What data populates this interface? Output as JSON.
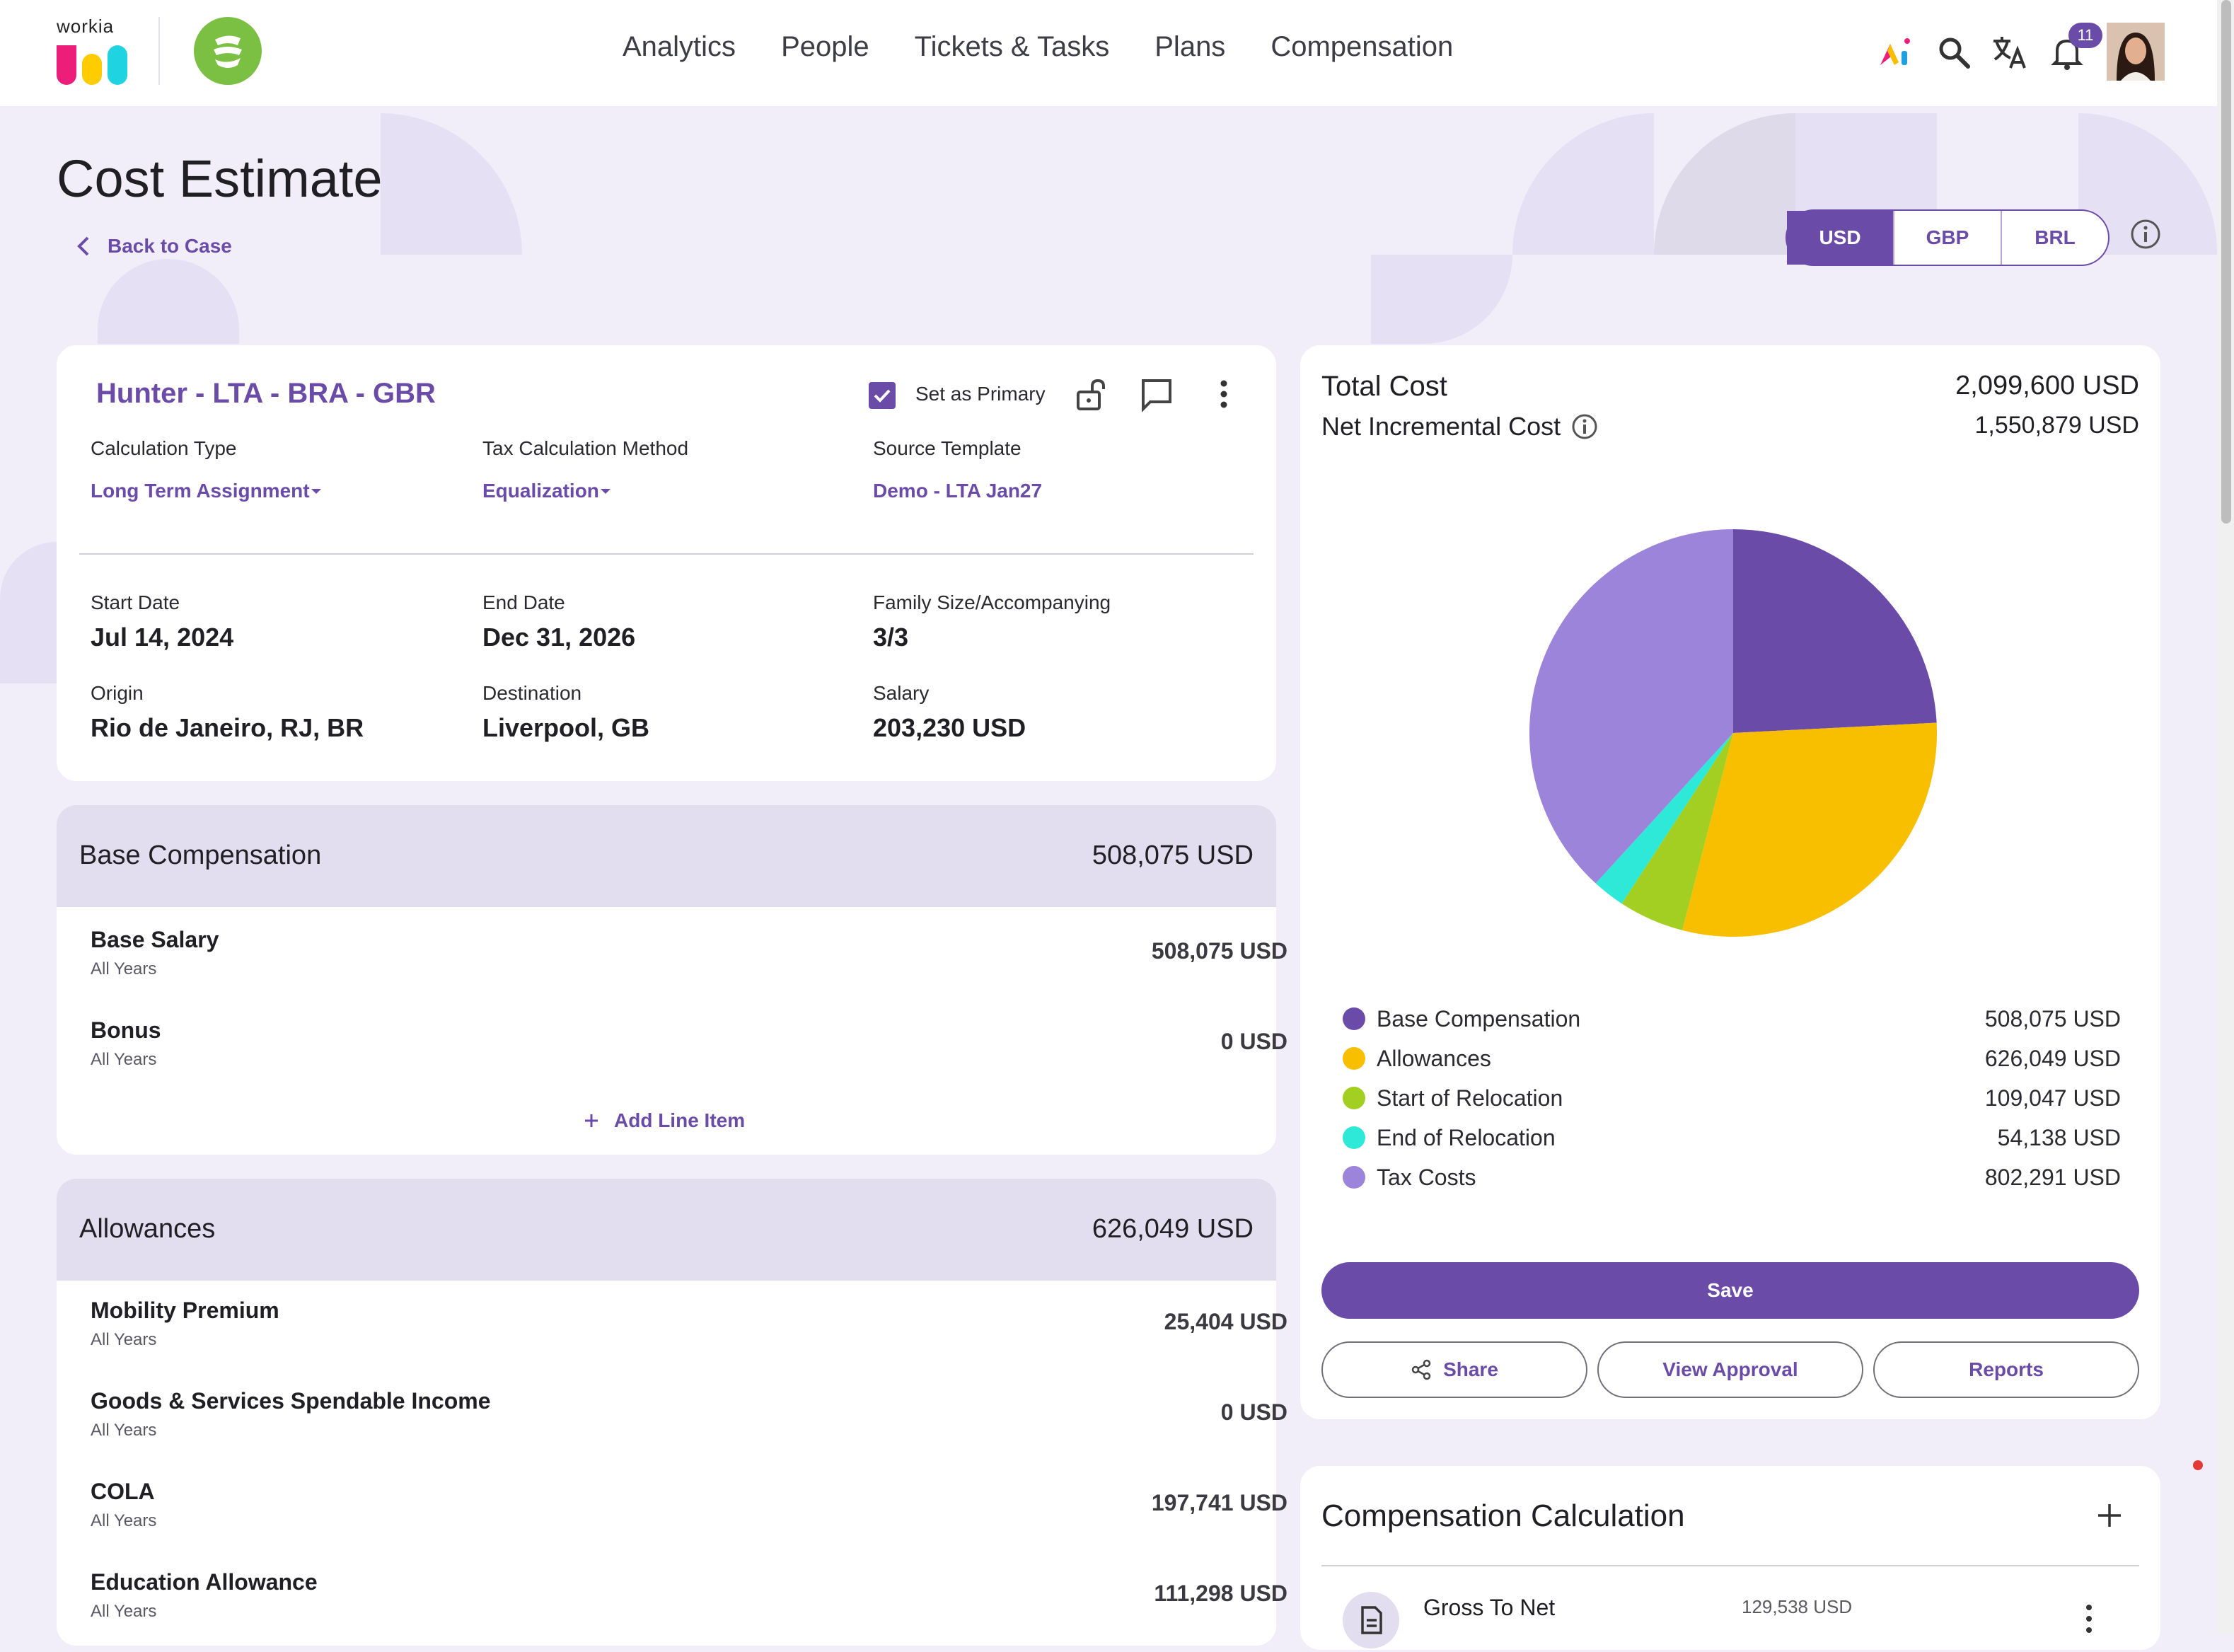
{
  "brand": {
    "text": "workia"
  },
  "nav": {
    "items": [
      "Analytics",
      "People",
      "Tickets & Tasks",
      "Plans",
      "Compensation"
    ]
  },
  "header_icons": {
    "notification_count": "11",
    "icons": [
      "ai-icon",
      "search-icon",
      "translate-icon",
      "bell-icon"
    ]
  },
  "page": {
    "title": "Cost Estimate",
    "back_label": "Back to Case"
  },
  "currency": {
    "options": [
      "USD",
      "GBP",
      "BRL"
    ],
    "selected": "USD"
  },
  "estimate": {
    "name": "Hunter - LTA - BRA - GBR",
    "set_primary_label": "Set as Primary",
    "set_primary_checked": true,
    "calc_type_label": "Calculation Type",
    "calc_type_value": "Long Term Assignment",
    "tax_method_label": "Tax Calculation Method",
    "tax_method_value": "Equalization",
    "source_template_label": "Source Template",
    "source_template_value": "Demo - LTA Jan27",
    "start_label": "Start Date",
    "start_value": "Jul 14, 2024",
    "end_label": "End Date",
    "end_value": "Dec 31, 2026",
    "family_label": "Family Size/Accompanying",
    "family_value": "3/3",
    "origin_label": "Origin",
    "origin_value": "Rio de Janeiro, RJ, BR",
    "dest_label": "Destination",
    "dest_value": "Liverpool, GB",
    "salary_label": "Salary",
    "salary_value": "203,230 USD"
  },
  "base_comp": {
    "title": "Base Compensation",
    "total": "508,075 USD",
    "items": [
      {
        "name": "Base Salary",
        "sub": "All Years",
        "amount": "508,075 USD"
      },
      {
        "name": "Bonus",
        "sub": "All Years",
        "amount": "0 USD"
      }
    ],
    "add_label": "Add Line Item"
  },
  "allowances": {
    "title": "Allowances",
    "total": "626,049 USD",
    "items": [
      {
        "name": "Mobility Premium",
        "sub": "All Years",
        "amount": "25,404 USD"
      },
      {
        "name": "Goods & Services Spendable Income",
        "sub": "All Years",
        "amount": "0 USD"
      },
      {
        "name": "COLA",
        "sub": "All Years",
        "amount": "197,741 USD"
      },
      {
        "name": "Education Allowance",
        "sub": "All Years",
        "amount": "111,298 USD"
      }
    ]
  },
  "summary": {
    "total_label": "Total Cost",
    "total_value": "2,099,600 USD",
    "net_label": "Net Incremental Cost",
    "net_value": "1,550,879 USD",
    "save_label": "Save",
    "share_label": "Share",
    "approval_label": "View Approval",
    "reports_label": "Reports"
  },
  "chart_data": {
    "type": "pie",
    "categories": [
      "Base Compensation",
      "Allowances",
      "Start of Relocation",
      "End of Relocation",
      "Tax Costs"
    ],
    "values": [
      508075,
      626049,
      109047,
      54138,
      802291
    ],
    "value_labels": [
      "508,075 USD",
      "626,049 USD",
      "109,047 USD",
      "54,138 USD",
      "802,291 USD"
    ],
    "colors": [
      "#6a4ca8",
      "#f8be00",
      "#a3ce22",
      "#2ee8d8",
      "#9b84da"
    ],
    "legend": "bottom"
  },
  "comp_calc": {
    "title": "Compensation Calculation",
    "item_name": "Gross To Net",
    "item_amount": "129,538 USD"
  }
}
